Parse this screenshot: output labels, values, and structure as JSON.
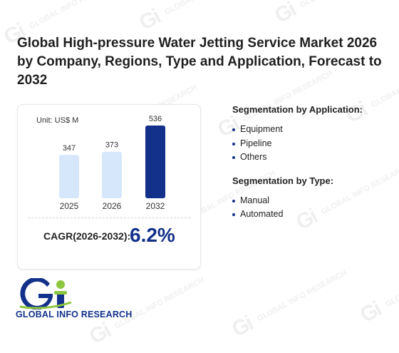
{
  "title": "Global High-pressure Water Jetting Service Market 2026 by Company, Regions, Type and Application, Forecast to 2032",
  "chart_data": {
    "type": "bar",
    "unit": "Unit: US$ M",
    "categories": [
      "2025",
      "2026",
      "2032"
    ],
    "values": [
      347,
      373,
      536
    ],
    "ylim": [
      0,
      600
    ],
    "colors": [
      "#d6e7fb",
      "#d6e7fb",
      "#13318a"
    ],
    "grid": false
  },
  "cagr": {
    "label": "CAGR(2026-2032):",
    "value": "6.2%"
  },
  "segments": {
    "application": {
      "heading": "Segmentation by Application:",
      "items": [
        "Equipment",
        "Pipeline",
        "Others"
      ]
    },
    "type": {
      "heading": "Segmentation by Type:",
      "items": [
        "Manual",
        "Automated"
      ]
    }
  },
  "logo": {
    "mark": "Gi",
    "text": "GLOBAL INFO RESEARCH",
    "watermark_text": "GLOBAL INFO RESEARCH",
    "colors": {
      "navy": "#13318a",
      "green": "#8dc63f"
    }
  }
}
